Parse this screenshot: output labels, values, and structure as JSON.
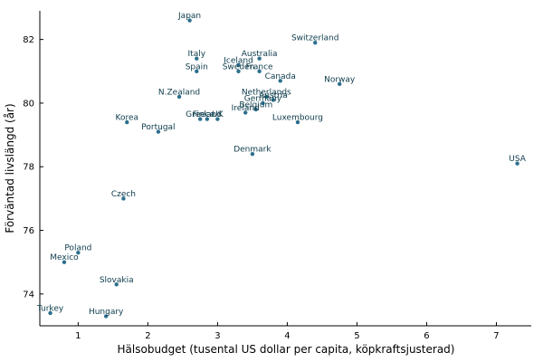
{
  "chart_data": {
    "type": "scatter",
    "title": "",
    "xlabel": "Hälsobudget (tusental US dollar per capita, köpkraftsjusterad)",
    "ylabel": "Förväntad livslängd (år)",
    "xlim": [
      0.45,
      7.5
    ],
    "ylim": [
      73.0,
      82.9
    ],
    "xticks": [
      1,
      2,
      3,
      4,
      5,
      6,
      7
    ],
    "yticks": [
      74,
      76,
      78,
      80,
      82
    ],
    "grid": false,
    "legend": "none",
    "point_color": "#2b6f8e",
    "points": [
      {
        "label": "Japan",
        "x": 2.6,
        "y": 82.6
      },
      {
        "label": "Switzerland",
        "x": 4.4,
        "y": 81.9
      },
      {
        "label": "Italy",
        "x": 2.7,
        "y": 81.4
      },
      {
        "label": "Australia",
        "x": 3.6,
        "y": 81.4
      },
      {
        "label": "Iceland",
        "x": 3.3,
        "y": 81.2
      },
      {
        "label": "Spain",
        "x": 2.7,
        "y": 81.0
      },
      {
        "label": "Sweden",
        "x": 3.3,
        "y": 81.0
      },
      {
        "label": "France",
        "x": 3.6,
        "y": 81.0
      },
      {
        "label": "Canada",
        "x": 3.9,
        "y": 80.7
      },
      {
        "label": "Norway",
        "x": 4.75,
        "y": 80.6
      },
      {
        "label": "N.Zealand",
        "x": 2.45,
        "y": 80.2
      },
      {
        "label": "Netherlands",
        "x": 3.7,
        "y": 80.2
      },
      {
        "label": "Austria",
        "x": 3.8,
        "y": 80.1
      },
      {
        "label": "Germany",
        "x": 3.65,
        "y": 80.0
      },
      {
        "label": "Belgium",
        "x": 3.55,
        "y": 79.8
      },
      {
        "label": "Ireland",
        "x": 3.4,
        "y": 79.7
      },
      {
        "label": "Greece",
        "x": 2.75,
        "y": 79.5
      },
      {
        "label": "Finland",
        "x": 2.85,
        "y": 79.5
      },
      {
        "label": "UK",
        "x": 3.0,
        "y": 79.5
      },
      {
        "label": "Korea",
        "x": 1.7,
        "y": 79.4
      },
      {
        "label": "Luxembourg",
        "x": 4.15,
        "y": 79.4
      },
      {
        "label": "Portugal",
        "x": 2.15,
        "y": 79.1
      },
      {
        "label": "Denmark",
        "x": 3.5,
        "y": 78.4
      },
      {
        "label": "USA",
        "x": 7.3,
        "y": 78.1
      },
      {
        "label": "Czech",
        "x": 1.65,
        "y": 77.0
      },
      {
        "label": "Poland",
        "x": 1.0,
        "y": 75.3
      },
      {
        "label": "Mexico",
        "x": 0.8,
        "y": 75.0
      },
      {
        "label": "Slovakia",
        "x": 1.55,
        "y": 74.3
      },
      {
        "label": "Turkey",
        "x": 0.6,
        "y": 73.4
      },
      {
        "label": "Hungary",
        "x": 1.4,
        "y": 73.3
      }
    ]
  }
}
